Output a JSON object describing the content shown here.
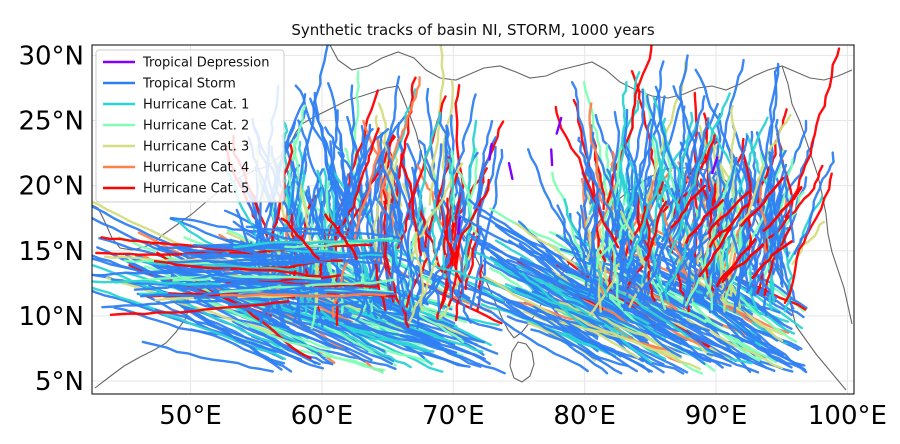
{
  "title": "Synthetic tracks of basin NI, STORM, 1000 years",
  "colors": {
    "background": "#ffffff",
    "coastline": "#666666",
    "grid": "#e6e6e6",
    "frame": "#000000"
  },
  "chart_data": {
    "type": "map",
    "title": "Synthetic tracks of basin NI, STORM, 1000 years",
    "xlim": [
      42.5,
      100.5
    ],
    "ylim": [
      4.0,
      30.8
    ],
    "x_ticks": [
      50,
      60,
      70,
      80,
      90,
      100
    ],
    "x_tick_labels": [
      "50°E",
      "60°E",
      "70°E",
      "80°E",
      "90°E",
      "100°E"
    ],
    "y_ticks": [
      5,
      10,
      15,
      20,
      25,
      30
    ],
    "y_tick_labels": [
      "5°N",
      "10°N",
      "15°N",
      "20°N",
      "25°N",
      "30°N"
    ],
    "grid": true,
    "legend_position": "top-left",
    "legend": [
      {
        "label": "Tropical Depression",
        "color": "#7f00ff"
      },
      {
        "label": "Tropical Storm",
        "color": "#2f7ff2"
      },
      {
        "label": "Hurricane Cat. 1",
        "color": "#2cd4d4"
      },
      {
        "label": "Hurricane Cat. 2",
        "color": "#80ffb4"
      },
      {
        "label": "Hurricane Cat. 3",
        "color": "#d4dd80"
      },
      {
        "label": "Hurricane Cat. 4",
        "color": "#ff7f4e"
      },
      {
        "label": "Hurricane Cat. 5",
        "color": "#ff0000"
      }
    ]
  }
}
